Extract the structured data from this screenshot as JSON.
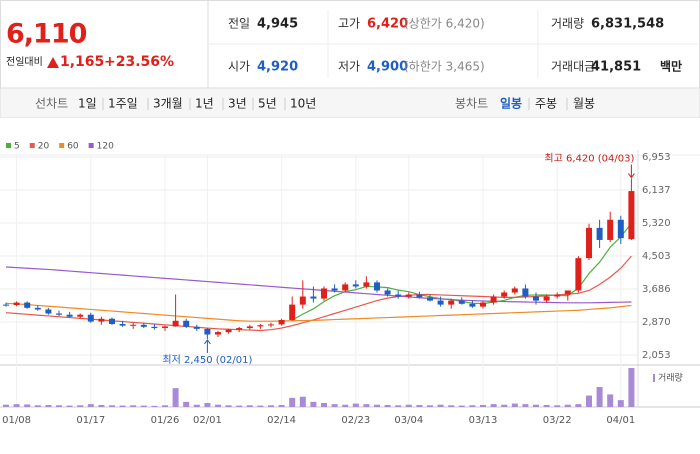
{
  "header": {
    "price": "6,110",
    "change_label": "전일대비",
    "change": "1,165",
    "change_pct": "+23.56%"
  },
  "info": [
    {
      "label": "전일",
      "value": "4,945"
    },
    {
      "label": "고가",
      "value": "6,420",
      "note": "(상한가 6,420)"
    },
    {
      "label": "거래량",
      "value": "6,831,548"
    },
    {
      "label": "시가",
      "value": "4,920"
    },
    {
      "label": "저가",
      "value": "4,900",
      "note": "(하한가 3,465)"
    },
    {
      "label": "거래대금",
      "value": "41,851",
      "unit": "백만"
    }
  ],
  "tabs": {
    "line": {
      "label": "선차트",
      "items": [
        "1일",
        "1주일",
        "3개월",
        "1년",
        "3년",
        "5년",
        "10년"
      ]
    },
    "candle": {
      "label": "봉차트",
      "items": [
        "일봉",
        "주봉",
        "월봉"
      ],
      "selected": 0
    }
  },
  "chart_data": {
    "type": "candlestick",
    "categories": [
      null,
      "01/08",
      null,
      null,
      null,
      null,
      null,
      null,
      "01/17",
      null,
      null,
      null,
      null,
      null,
      null,
      "01/26",
      null,
      null,
      null,
      "02/01",
      null,
      null,
      null,
      null,
      null,
      null,
      "02/14",
      null,
      null,
      null,
      null,
      null,
      null,
      "02/23",
      null,
      null,
      null,
      null,
      "03/04",
      null,
      null,
      null,
      null,
      null,
      null,
      "03/13",
      null,
      null,
      null,
      null,
      null,
      null,
      "03/22",
      null,
      null,
      null,
      null,
      null,
      "04/01",
      null
    ],
    "open": [
      3300,
      3290,
      3350,
      3220,
      3180,
      3080,
      3050,
      3000,
      3050,
      2880,
      2950,
      2820,
      2780,
      2800,
      2750,
      2720,
      2760,
      2900,
      2750,
      2700,
      2560,
      2620,
      2680,
      2720,
      2760,
      2790,
      2810,
      2920,
      3300,
      3500,
      3450,
      3700,
      3650,
      3800,
      3750,
      3850,
      3650,
      3550,
      3500,
      3550,
      3480,
      3400,
      3300,
      3400,
      3320,
      3250,
      3350,
      3500,
      3600,
      3700,
      3500,
      3400,
      3500,
      3550,
      3650,
      4450,
      5200,
      4900,
      5400,
      4920
    ],
    "high": [
      3350,
      3380,
      3380,
      3280,
      3220,
      3150,
      3120,
      3080,
      3100,
      3000,
      2980,
      2900,
      2850,
      2850,
      2820,
      2780,
      3550,
      2950,
      2800,
      2720,
      2650,
      2700,
      2750,
      2800,
      2820,
      2850,
      2950,
      3500,
      3900,
      3750,
      3750,
      3800,
      3850,
      3900,
      4000,
      3900,
      3700,
      3650,
      3600,
      3620,
      3550,
      3500,
      3450,
      3480,
      3400,
      3380,
      3550,
      3650,
      3750,
      3800,
      3600,
      3550,
      3600,
      3650,
      4500,
      5300,
      5400,
      5600,
      5500,
      6420
    ],
    "low": [
      3250,
      3260,
      3200,
      3150,
      3050,
      3020,
      2980,
      2950,
      2850,
      2800,
      2800,
      2750,
      2700,
      2720,
      2680,
      2650,
      2750,
      2720,
      2650,
      2450,
      2500,
      2580,
      2620,
      2680,
      2700,
      2740,
      2780,
      2900,
      3200,
      3350,
      3400,
      3600,
      3600,
      3700,
      3700,
      3600,
      3500,
      3450,
      3450,
      3450,
      3380,
      3250,
      3200,
      3300,
      3220,
      3200,
      3300,
      3450,
      3550,
      3450,
      3300,
      3350,
      3450,
      3400,
      3600,
      4400,
      4700,
      4850,
      4800,
      4900
    ],
    "close": [
      3290,
      3350,
      3220,
      3180,
      3080,
      3050,
      3000,
      3050,
      2880,
      2950,
      2820,
      2780,
      2800,
      2750,
      2720,
      2760,
      2900,
      2750,
      2700,
      2560,
      2620,
      2680,
      2720,
      2760,
      2790,
      2810,
      2920,
      3300,
      3500,
      3450,
      3700,
      3650,
      3800,
      3750,
      3850,
      3650,
      3550,
      3500,
      3550,
      3480,
      3400,
      3300,
      3400,
      3320,
      3250,
      3350,
      3500,
      3600,
      3700,
      3500,
      3400,
      3500,
      3550,
      3650,
      4450,
      5200,
      4900,
      5400,
      4945,
      6110
    ],
    "up_color": "#e0201a",
    "down_color": "#1f5fc4",
    "moving_averages": [
      {
        "name": "5",
        "color": "#4caf3c",
        "values": [
          null,
          null,
          null,
          null,
          null,
          null,
          null,
          null,
          null,
          null,
          null,
          null,
          null,
          null,
          null,
          null,
          null,
          null,
          null,
          null,
          null,
          null,
          null,
          null,
          null,
          null,
          null,
          2916,
          3064,
          3196,
          3374,
          3520,
          3620,
          3670,
          3750,
          3740,
          3720,
          3660,
          3620,
          3546,
          3496,
          3446,
          3426,
          3380,
          3334,
          3324,
          3364,
          3404,
          3480,
          3530,
          3540,
          3540,
          3530,
          3520,
          3710,
          4070,
          4350,
          4720,
          4979,
          5311
        ]
      },
      {
        "name": "20",
        "color": "#e8584a",
        "values": [
          3100,
          3080,
          3060,
          3040,
          3020,
          3000,
          2980,
          2960,
          2940,
          2920,
          2900,
          2880,
          2860,
          2840,
          2820,
          2800,
          2780,
          2760,
          2740,
          2720,
          2700,
          2690,
          2680,
          2670,
          2660,
          2680,
          2720,
          2780,
          2850,
          2920,
          3000,
          3080,
          3160,
          3240,
          3320,
          3400,
          3460,
          3500,
          3530,
          3550,
          3550,
          3540,
          3530,
          3520,
          3510,
          3500,
          3490,
          3480,
          3480,
          3490,
          3500,
          3520,
          3540,
          3560,
          3580,
          3650,
          3800,
          3980,
          4200,
          4500
        ]
      },
      {
        "name": "60",
        "color": "#f08a24",
        "values": [
          3330,
          3320,
          3300,
          3280,
          3260,
          3240,
          3220,
          3200,
          3180,
          3160,
          3140,
          3120,
          3100,
          3080,
          3060,
          3040,
          3020,
          3000,
          2980,
          2960,
          2940,
          2920,
          2900,
          2890,
          2890,
          2890,
          2895,
          2900,
          2905,
          2910,
          2920,
          2930,
          2940,
          2950,
          2960,
          2970,
          2980,
          2990,
          3000,
          3010,
          3020,
          3030,
          3040,
          3050,
          3060,
          3070,
          3080,
          3090,
          3100,
          3110,
          3120,
          3130,
          3140,
          3150,
          3160,
          3180,
          3200,
          3220,
          3250,
          3280
        ]
      },
      {
        "name": "120",
        "color": "#9a5ac8",
        "values": [
          4230,
          4215,
          4200,
          4185,
          4170,
          4150,
          4130,
          4110,
          4090,
          4070,
          4050,
          4030,
          4010,
          3990,
          3970,
          3950,
          3930,
          3910,
          3890,
          3870,
          3850,
          3830,
          3810,
          3790,
          3770,
          3750,
          3730,
          3710,
          3690,
          3670,
          3650,
          3630,
          3610,
          3590,
          3570,
          3550,
          3530,
          3510,
          3490,
          3470,
          3455,
          3440,
          3425,
          3410,
          3400,
          3390,
          3380,
          3375,
          3370,
          3365,
          3360,
          3355,
          3350,
          3345,
          3345,
          3345,
          3350,
          3355,
          3360,
          3365
        ]
      }
    ],
    "ylim": [
      2053,
      6953
    ],
    "yticks": [
      {
        "value": 6953,
        "label": "6,953"
      },
      {
        "value": 6137,
        "label": "6,137"
      },
      {
        "value": 5320,
        "label": "5,320"
      },
      {
        "value": 4503,
        "label": "4,503"
      },
      {
        "value": 3686,
        "label": "3,686"
      },
      {
        "value": 2870,
        "label": "2,870"
      },
      {
        "value": 2053,
        "label": "2,053"
      }
    ],
    "grid": true,
    "volume": {
      "name": "거래량",
      "color": "#a98ad6",
      "ylim": [
        0,
        7000000
      ],
      "values": [
        400000,
        500000,
        450000,
        300000,
        350000,
        300000,
        250000,
        300000,
        500000,
        350000,
        300000,
        250000,
        300000,
        250000,
        200000,
        300000,
        3300000,
        900000,
        400000,
        700000,
        400000,
        300000,
        250000,
        300000,
        250000,
        300000,
        350000,
        1600000,
        1800000,
        900000,
        700000,
        500000,
        400000,
        600000,
        500000,
        400000,
        350000,
        300000,
        400000,
        350000,
        300000,
        400000,
        300000,
        250000,
        300000,
        350000,
        500000,
        400000,
        600000,
        500000,
        400000,
        350000,
        300000,
        400000,
        500000,
        2000000,
        3500000,
        2200000,
        1200000,
        6831548
      ]
    },
    "annotations": [
      {
        "text": "최고 6,420 (04/03)",
        "index": 59,
        "at": "high",
        "color": "#c8201a"
      },
      {
        "text": "최저 2,450 (02/01)",
        "index": 19,
        "at": "low",
        "color": "#1f5fc4"
      }
    ]
  }
}
